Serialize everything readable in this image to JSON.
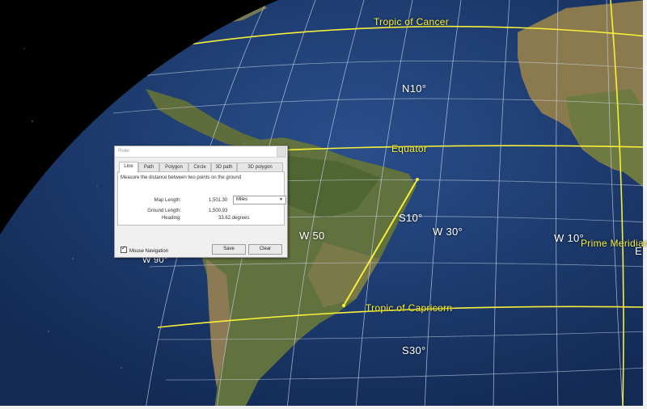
{
  "map": {
    "labels": {
      "tropic_cancer": "Tropic of Cancer",
      "equator": "Equator",
      "tropic_capricorn": "Tropic of Capricorn",
      "prime_meridian": "Prime Meridian",
      "n10": "N10°",
      "s10": "S10°",
      "s30": "S30°",
      "w30": "W 30°",
      "w10": "W 10°",
      "w50": "W 50",
      "w90": "W 90°",
      "e_partial": "E"
    },
    "colors": {
      "ocean": "#1d3f78",
      "land": "#6b7b45",
      "gridline": "#c9d6e8",
      "latitude_line": "#f6ef3a",
      "measure_line": "#f6ef3a"
    }
  },
  "ruler": {
    "title": "Ruler",
    "tabs": [
      "Line",
      "Path",
      "Polygon",
      "Circle",
      "3D path",
      "3D polygon"
    ],
    "active_tab": "Line",
    "description": "Measure the distance between two points on the ground",
    "map_length_label": "Map Length:",
    "map_length_value": "1,501.30",
    "unit": "Miles",
    "ground_length_label": "Ground Length:",
    "ground_length_value": "1,500.93",
    "heading_label": "Heading:",
    "heading_value": "33.62 degrees",
    "mouse_navigation_label": "Mouse Navigation",
    "mouse_navigation_checked": true,
    "save_label": "Save",
    "clear_label": "Clear"
  }
}
